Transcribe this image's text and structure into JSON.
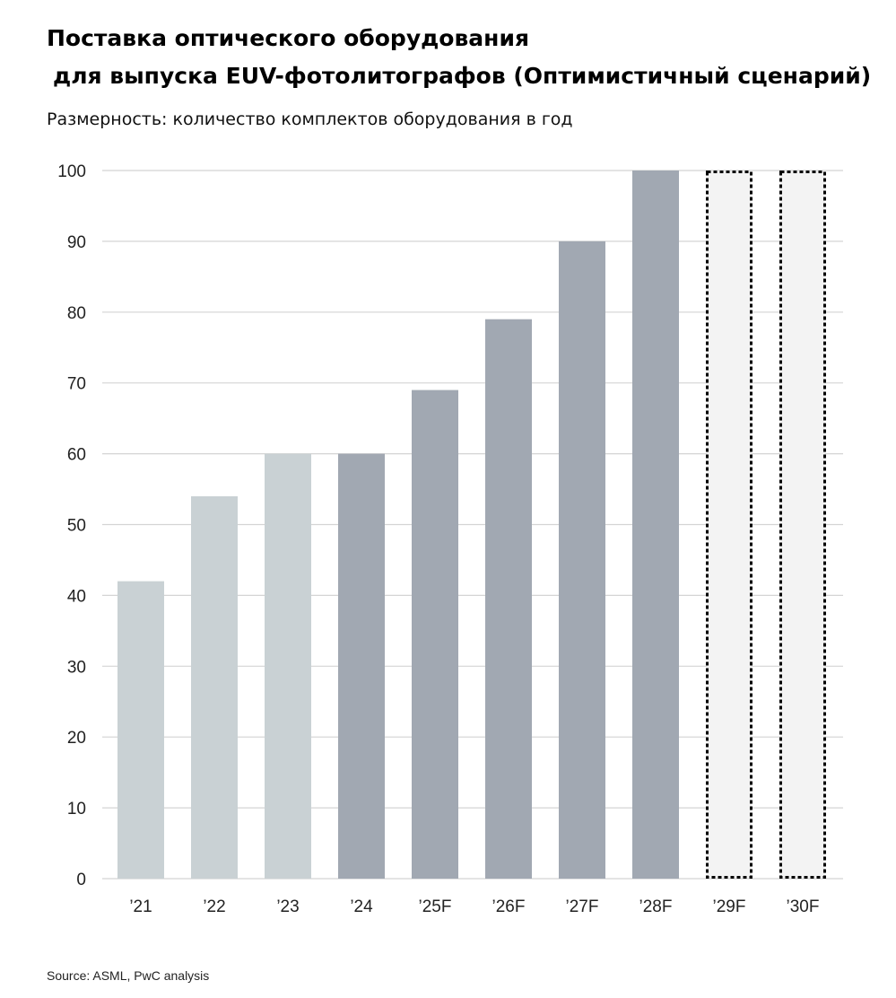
{
  "title_line1": "Поставка оптического оборудования",
  "title_line2": "для выпуска EUV-фотолитографов (Оптимистичный сценарий)",
  "subtitle": "Размерность: количество комплектов оборудования в год",
  "source": "Source: ASML, PwC analysis",
  "colors": {
    "historical": "#c9d1d4",
    "forecast": "#a1a8b2",
    "outline": "#000000",
    "outline_fill": "#f3f3f3",
    "grid": "#d4d4d4"
  },
  "chart_data": {
    "type": "bar",
    "categories": [
      "’21",
      "’22",
      "’23",
      "’24",
      "’25F",
      "’26F",
      "’27F",
      "’28F",
      "’29F",
      "’30F"
    ],
    "values": [
      42,
      54,
      60,
      60,
      69,
      79,
      90,
      100,
      100,
      100
    ],
    "styles": [
      "historical",
      "historical",
      "historical",
      "forecast",
      "forecast",
      "forecast",
      "forecast",
      "forecast",
      "outline",
      "outline"
    ],
    "ylim": [
      0,
      100
    ],
    "yticks": [
      0,
      10,
      20,
      30,
      40,
      50,
      60,
      70,
      80,
      90,
      100
    ],
    "grid": true
  }
}
